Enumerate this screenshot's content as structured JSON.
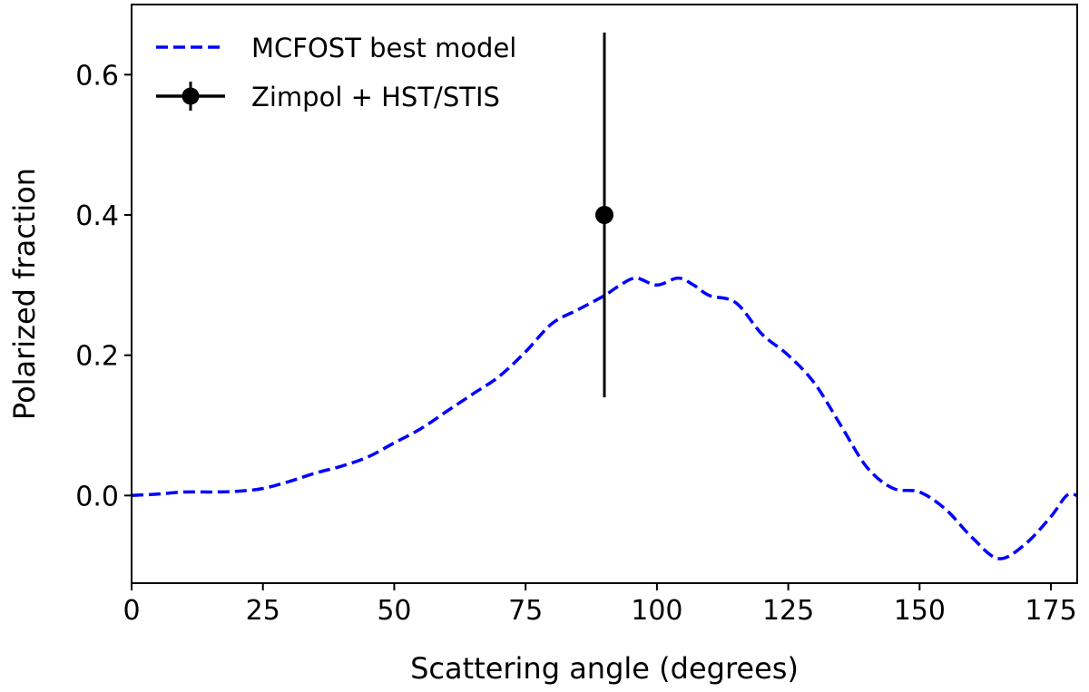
{
  "chart_data": {
    "type": "line",
    "title": "",
    "xlabel": "Scattering angle (degrees)",
    "ylabel": "Polarized fraction",
    "xlim": [
      0,
      180
    ],
    "ylim": [
      -0.125,
      0.7
    ],
    "xticks": [
      0,
      25,
      50,
      75,
      100,
      125,
      150,
      175
    ],
    "yticks": [
      0.0,
      0.2,
      0.4,
      0.6
    ],
    "xtick_labels": [
      "0",
      "25",
      "50",
      "75",
      "100",
      "125",
      "150",
      "175"
    ],
    "ytick_labels": [
      "0.0",
      "0.2",
      "0.4",
      "0.6"
    ],
    "grid": false,
    "legend_position": "top-left",
    "series": [
      {
        "name": "MCFOST best model",
        "style": "dashed",
        "color": "#0000ff",
        "x": [
          0,
          5,
          10,
          15,
          20,
          25,
          30,
          35,
          40,
          45,
          50,
          55,
          60,
          65,
          70,
          75,
          80,
          85,
          90,
          93,
          96,
          100,
          104,
          107,
          110,
          115,
          120,
          125,
          130,
          135,
          140,
          145,
          150,
          155,
          160,
          165,
          170,
          175,
          178,
          180
        ],
        "y": [
          0.0,
          0.002,
          0.005,
          0.005,
          0.006,
          0.01,
          0.02,
          0.032,
          0.042,
          0.055,
          0.075,
          0.095,
          0.12,
          0.145,
          0.17,
          0.205,
          0.245,
          0.265,
          0.285,
          0.3,
          0.31,
          0.3,
          0.31,
          0.3,
          0.285,
          0.275,
          0.23,
          0.2,
          0.16,
          0.1,
          0.04,
          0.01,
          0.005,
          -0.02,
          -0.06,
          -0.09,
          -0.07,
          -0.03,
          0.0,
          0.0
        ]
      },
      {
        "name": "Zimpol + HST/STIS",
        "style": "errorbar",
        "color": "#000000",
        "x": [
          90
        ],
        "y": [
          0.4
        ],
        "yerr_low": [
          0.14
        ],
        "yerr_high": [
          0.66
        ]
      }
    ]
  }
}
